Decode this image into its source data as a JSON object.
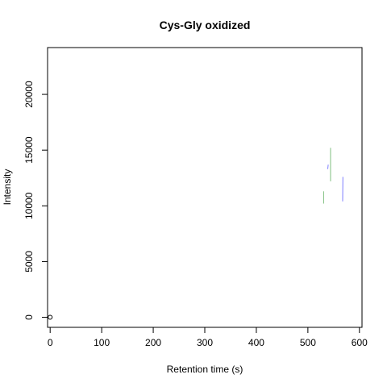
{
  "chart_data": {
    "type": "line",
    "title": "Cys-Gly oxidized",
    "xlabel": "Retention time (s)",
    "ylabel": "Intensity",
    "xlim": [
      -5,
      605
    ],
    "ylim": [
      -900,
      24200
    ],
    "x_ticks": [
      0,
      100,
      200,
      300,
      400,
      500,
      600
    ],
    "y_ticks": [
      0,
      5000,
      10000,
      15000,
      20000
    ],
    "grid": false,
    "legend": "none",
    "points": [
      {
        "x": 0,
        "y": 0
      }
    ],
    "series": [
      {
        "color": "#7fbf7f",
        "x": [
          530.5,
          530.5
        ],
        "y": [
          10200,
          11300
        ]
      },
      {
        "color": "#7f7fff",
        "x": [
          538.5,
          539.5
        ],
        "y": [
          13300,
          13700
        ]
      },
      {
        "color": "#7fbf7f",
        "x": [
          544,
          544
        ],
        "y": [
          12200,
          15200
        ]
      },
      {
        "color": "#7f7fff",
        "x": [
          567.5,
          568
        ],
        "y": [
          10400,
          12600
        ]
      }
    ]
  }
}
